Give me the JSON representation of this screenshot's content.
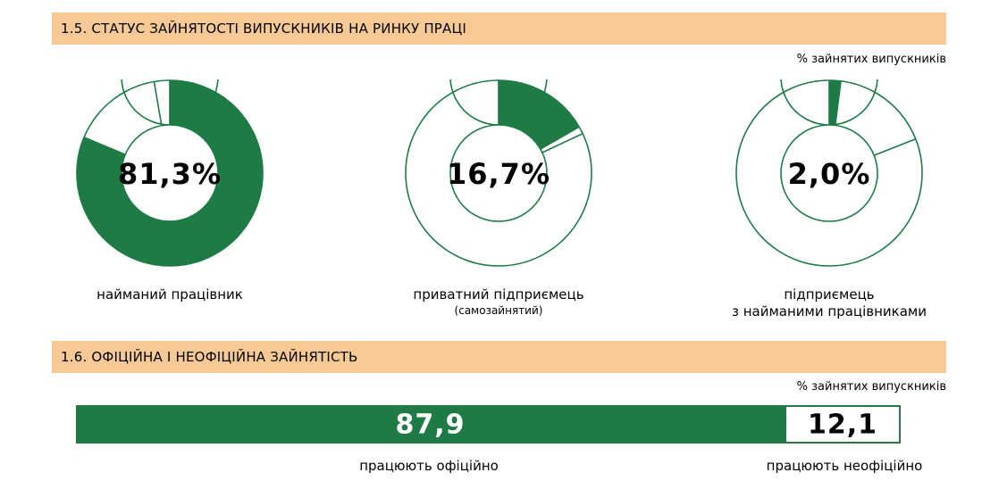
{
  "section1": {
    "title": "1.5. СТАТУС ЗАЙНЯТОСТІ ВИПУСКНИКІВ НА РИНКУ ПРАЦІ",
    "unit": "% зайнятих випускників"
  },
  "section2": {
    "title": "1.6. ОФІЦІЙНА І НЕОФІЦІЙНА ЗАЙНЯТІСТЬ",
    "unit": "% зайнятих випускників"
  },
  "colors": {
    "accent": "#1e7b45",
    "header_bg": "#f7c994"
  },
  "chart_data": [
    {
      "type": "pie",
      "variant": "donut",
      "value": 81.3,
      "display_value": "81,3%",
      "label": "найманий працівник",
      "sublabel": ""
    },
    {
      "type": "pie",
      "variant": "donut",
      "value": 16.7,
      "display_value": "16,7%",
      "label": "приватний підприємець",
      "sublabel": "(самозайнятий)"
    },
    {
      "type": "pie",
      "variant": "donut",
      "value": 2.0,
      "display_value": "2,0%",
      "label": "підприємець",
      "sublabel": "з найманими працівниками"
    },
    {
      "type": "bar",
      "orientation": "horizontal",
      "stacked": true,
      "categories": [
        "працюють офіційно",
        "працюють неофіційно"
      ],
      "values": [
        87.9,
        12.1
      ],
      "display_values": [
        "87,9",
        "12,1"
      ]
    }
  ]
}
